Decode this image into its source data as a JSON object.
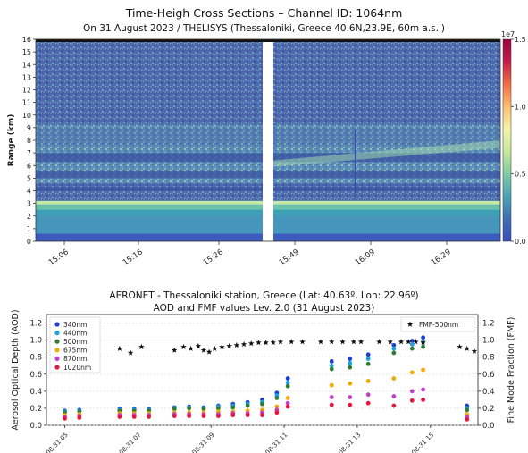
{
  "chart_data": [
    {
      "type": "heatmap",
      "title": "Time-Heigh Cross Sections – Channel ID: 1064nm",
      "subtitle": "On 31 August 2023 / THELISYS (Thessaloniki, Greece 40.6N,23.9E, 60m a.s.l)",
      "ylabel": "Range (km)",
      "ylim": [
        0,
        16
      ],
      "yticks": [
        "0",
        "1",
        "2",
        "3",
        "4",
        "5",
        "6",
        "7",
        "8",
        "9",
        "10",
        "11",
        "12",
        "13",
        "14",
        "15",
        "16"
      ],
      "xticks": [
        "15:06",
        "15:16",
        "15:26",
        "15:49",
        "16:09",
        "16:29"
      ],
      "colorbar": {
        "label": "1e7",
        "ticks": [
          "0.0",
          "0.5",
          "1.0",
          "1.5"
        ],
        "range": [
          0,
          1.5
        ],
        "colors": [
          "#3b4cc0",
          "#3f6fb3",
          "#4aa3b7",
          "#7fcba4",
          "#c8e89a",
          "#f5f4a8",
          "#fdbf6f",
          "#f46d43",
          "#c51b4a",
          "#9e0142"
        ]
      },
      "features": {
        "data_gap": [
          "15:35",
          "15:47"
        ],
        "boundary_layer_top_km": 3.2,
        "layer_bands_km": [
          [
            4.0,
            4.3
          ],
          [
            5.0,
            5.6
          ],
          [
            6.3,
            7.0
          ],
          [
            7.6,
            9.0
          ]
        ]
      }
    },
    {
      "type": "scatter",
      "title": "AERONET - Thessaloniki station, Greece (Lat: 40.63º, Lon: 22.96º)",
      "subtitle": "AOD and FMF values Lev. 2.0 (31 August 2023)",
      "ylabel": "Aerosol Optical Depth (AOD)",
      "y2label": "Fine Mode Fraction (FMF)",
      "ylim": [
        0,
        1.3
      ],
      "y2lim": [
        0,
        1.3
      ],
      "yticks": [
        "0.0",
        "0.2",
        "0.4",
        "0.6",
        "0.8",
        "1.0",
        "1.2"
      ],
      "xticks": [
        "08-31 05",
        "08-31 07",
        "08-31 09",
        "08-31 11",
        "08-31 13",
        "08-31 15"
      ],
      "x_hour_range": [
        4.5,
        16.3
      ],
      "legend_position": "top-left",
      "legend2_position": "top-right",
      "series": [
        {
          "name": "340nm",
          "color": "#1f3fd6"
        },
        {
          "name": "440nm",
          "color": "#1aa3e0"
        },
        {
          "name": "500nm",
          "color": "#2e7d32"
        },
        {
          "name": "675nm",
          "color": "#f2a900"
        },
        {
          "name": "870nm",
          "color": "#c040c8"
        },
        {
          "name": "1020nm",
          "color": "#e8163c"
        }
      ],
      "aod": [
        {
          "hour": 5.0,
          "values": [
            0.17,
            0.16,
            0.15,
            0.12,
            0.1,
            0.08
          ]
        },
        {
          "hour": 5.4,
          "values": [
            0.18,
            0.17,
            0.16,
            0.13,
            0.11,
            0.09
          ]
        },
        {
          "hour": 6.5,
          "values": [
            0.19,
            0.18,
            0.17,
            0.14,
            0.12,
            0.1
          ]
        },
        {
          "hour": 6.9,
          "values": [
            0.19,
            0.18,
            0.17,
            0.14,
            0.12,
            0.1
          ]
        },
        {
          "hour": 7.3,
          "values": [
            0.19,
            0.18,
            0.17,
            0.14,
            0.12,
            0.1
          ]
        },
        {
          "hour": 8.0,
          "values": [
            0.21,
            0.2,
            0.19,
            0.15,
            0.13,
            0.11
          ]
        },
        {
          "hour": 8.4,
          "values": [
            0.22,
            0.21,
            0.2,
            0.15,
            0.13,
            0.11
          ]
        },
        {
          "hour": 8.8,
          "values": [
            0.21,
            0.2,
            0.19,
            0.15,
            0.13,
            0.11
          ]
        },
        {
          "hour": 9.2,
          "values": [
            0.23,
            0.22,
            0.2,
            0.16,
            0.13,
            0.11
          ]
        },
        {
          "hour": 9.6,
          "values": [
            0.25,
            0.23,
            0.21,
            0.16,
            0.14,
            0.12
          ]
        },
        {
          "hour": 10.0,
          "values": [
            0.27,
            0.25,
            0.23,
            0.17,
            0.14,
            0.12
          ]
        },
        {
          "hour": 10.4,
          "values": [
            0.3,
            0.27,
            0.25,
            0.18,
            0.15,
            0.12
          ]
        },
        {
          "hour": 10.8,
          "values": [
            0.38,
            0.35,
            0.32,
            0.22,
            0.18,
            0.15
          ]
        },
        {
          "hour": 11.1,
          "values": [
            0.55,
            0.5,
            0.46,
            0.32,
            0.26,
            0.22
          ]
        },
        {
          "hour": 12.3,
          "values": [
            0.75,
            0.7,
            0.66,
            0.47,
            0.33,
            0.24
          ]
        },
        {
          "hour": 12.8,
          "values": [
            0.78,
            0.73,
            0.68,
            0.49,
            0.33,
            0.24
          ]
        },
        {
          "hour": 13.3,
          "values": [
            0.83,
            0.78,
            0.72,
            0.52,
            0.36,
            0.26
          ]
        },
        {
          "hour": 14.0,
          "values": [
            0.94,
            0.9,
            0.85,
            0.55,
            0.34,
            0.23
          ]
        },
        {
          "hour": 14.5,
          "values": [
            0.99,
            0.95,
            0.9,
            0.62,
            0.4,
            0.29
          ]
        },
        {
          "hour": 14.8,
          "values": [
            1.03,
            0.98,
            0.92,
            0.65,
            0.42,
            0.3
          ]
        },
        {
          "hour": 16.0,
          "values": [
            0.23,
            0.2,
            0.18,
            0.13,
            0.1,
            0.07
          ]
        }
      ],
      "fmf_series": {
        "name": "FMF-500nm",
        "marker": "star",
        "color": "#111111"
      },
      "fmf": [
        {
          "hour": 6.5,
          "value": 0.9
        },
        {
          "hour": 6.8,
          "value": 0.85
        },
        {
          "hour": 7.1,
          "value": 0.92
        },
        {
          "hour": 8.0,
          "value": 0.88
        },
        {
          "hour": 8.25,
          "value": 0.92
        },
        {
          "hour": 8.45,
          "value": 0.9
        },
        {
          "hour": 8.65,
          "value": 0.93
        },
        {
          "hour": 8.8,
          "value": 0.88
        },
        {
          "hour": 8.95,
          "value": 0.86
        },
        {
          "hour": 9.1,
          "value": 0.9
        },
        {
          "hour": 9.3,
          "value": 0.92
        },
        {
          "hour": 9.5,
          "value": 0.93
        },
        {
          "hour": 9.7,
          "value": 0.94
        },
        {
          "hour": 9.9,
          "value": 0.95
        },
        {
          "hour": 10.1,
          "value": 0.96
        },
        {
          "hour": 10.3,
          "value": 0.97
        },
        {
          "hour": 10.5,
          "value": 0.97
        },
        {
          "hour": 10.7,
          "value": 0.97
        },
        {
          "hour": 10.9,
          "value": 0.98
        },
        {
          "hour": 11.2,
          "value": 0.98
        },
        {
          "hour": 11.5,
          "value": 0.98
        },
        {
          "hour": 12.0,
          "value": 0.98
        },
        {
          "hour": 12.3,
          "value": 0.98
        },
        {
          "hour": 12.6,
          "value": 0.98
        },
        {
          "hour": 12.9,
          "value": 0.98
        },
        {
          "hour": 13.1,
          "value": 0.98
        },
        {
          "hour": 13.6,
          "value": 0.98
        },
        {
          "hour": 13.9,
          "value": 0.98
        },
        {
          "hour": 14.2,
          "value": 0.98
        },
        {
          "hour": 14.4,
          "value": 0.98
        },
        {
          "hour": 14.6,
          "value": 0.98
        },
        {
          "hour": 14.8,
          "value": 0.97
        },
        {
          "hour": 15.8,
          "value": 0.92
        },
        {
          "hour": 16.0,
          "value": 0.9
        },
        {
          "hour": 16.2,
          "value": 0.87
        }
      ]
    }
  ]
}
